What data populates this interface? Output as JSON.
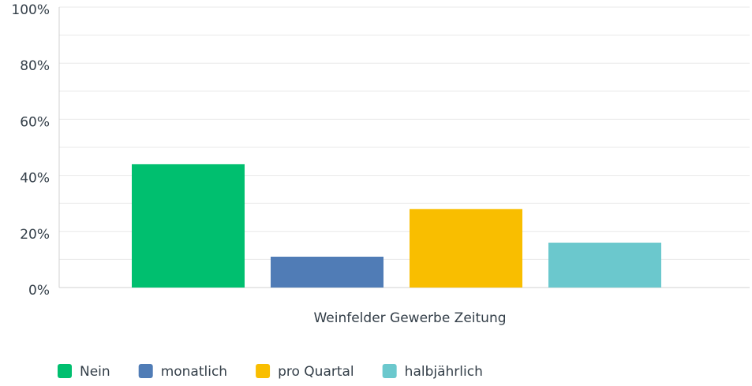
{
  "chart_data": {
    "type": "bar",
    "categories": [
      "Weinfelder Gewerbe Zeitung"
    ],
    "series": [
      {
        "name": "Nein",
        "color": "#00bf6f",
        "values": [
          44
        ]
      },
      {
        "name": "monatlich",
        "color": "#507cb6",
        "values": [
          11
        ]
      },
      {
        "name": "pro Quartal",
        "color": "#f9be00",
        "values": [
          28
        ]
      },
      {
        "name": "halbjährlich",
        "color": "#6bc8cd",
        "values": [
          16
        ]
      }
    ],
    "ylim": [
      0,
      100
    ],
    "yticks": [
      {
        "value": 0,
        "label": "0%"
      },
      {
        "value": 20,
        "label": "20%"
      },
      {
        "value": 40,
        "label": "40%"
      },
      {
        "value": 60,
        "label": "60%"
      },
      {
        "value": 80,
        "label": "80%"
      },
      {
        "value": 100,
        "label": "100%"
      }
    ],
    "minor_yticks": [
      10,
      30,
      50,
      70,
      90
    ],
    "grid": true,
    "legend": "bottom"
  }
}
